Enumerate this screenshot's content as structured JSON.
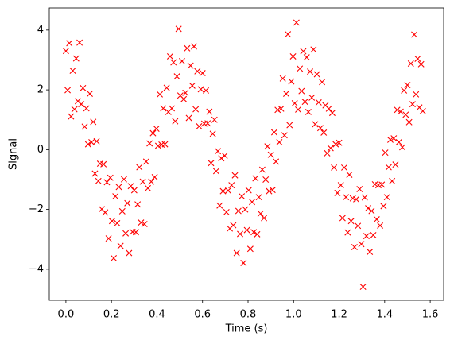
{
  "chart_data": {
    "type": "scatter",
    "xlabel": "Time (s)",
    "ylabel": "Signal",
    "color": "red",
    "marker": "x",
    "xlim": [
      -0.073,
      1.659
    ],
    "ylim": [
      -5.04,
      4.74
    ],
    "xticks": [
      {
        "value": 0,
        "label": "0.0"
      },
      0.2,
      0.4,
      0.6,
      0.8,
      {
        "value": 1,
        "label": "1.0"
      },
      1.2,
      1.4,
      1.6
    ],
    "yticks": [
      {
        "value": -4,
        "label": "−4"
      },
      {
        "value": -2,
        "label": "−2"
      },
      0,
      2,
      4
    ],
    "x": [
      0,
      0.0075,
      0.015,
      0.0225,
      0.03,
      0.0375,
      0.045,
      0.0525,
      0.06,
      0.0675,
      0.075,
      0.0825,
      0.09,
      0.0975,
      0.105,
      0.1125,
      0.12,
      0.1275,
      0.135,
      0.1425,
      0.15,
      0.1575,
      0.165,
      0.1725,
      0.18,
      0.1875,
      0.195,
      0.2025,
      0.21,
      0.2175,
      0.225,
      0.2325,
      0.24,
      0.2475,
      0.255,
      0.2625,
      0.27,
      0.2775,
      0.285,
      0.2925,
      0.3,
      0.3075,
      0.315,
      0.3225,
      0.33,
      0.3375,
      0.345,
      0.3525,
      0.36,
      0.3675,
      0.375,
      0.3825,
      0.39,
      0.3975,
      0.405,
      0.4125,
      0.42,
      0.4275,
      0.435,
      0.4425,
      0.45,
      0.4575,
      0.465,
      0.4725,
      0.48,
      0.4875,
      0.495,
      0.5025,
      0.51,
      0.5175,
      0.525,
      0.5325,
      0.54,
      0.5475,
      0.555,
      0.5625,
      0.57,
      0.5775,
      0.585,
      0.5925,
      0.6,
      0.6075,
      0.615,
      0.6225,
      0.63,
      0.6375,
      0.645,
      0.6525,
      0.66,
      0.6675,
      0.675,
      0.6825,
      0.69,
      0.6975,
      0.705,
      0.7125,
      0.72,
      0.7275,
      0.735,
      0.7425,
      0.75,
      0.7575,
      0.765,
      0.7725,
      0.78,
      0.7875,
      0.795,
      0.8025,
      0.81,
      0.8175,
      0.825,
      0.8325,
      0.84,
      0.8475,
      0.855,
      0.8625,
      0.87,
      0.8775,
      0.885,
      0.8925,
      0.9,
      0.9075,
      0.915,
      0.9225,
      0.93,
      0.9375,
      0.945,
      0.9525,
      0.96,
      0.9675,
      0.975,
      0.9825,
      0.99,
      0.9975,
      1.005,
      1.0125,
      1.02,
      1.0275,
      1.035,
      1.0425,
      1.05,
      1.0575,
      1.065,
      1.0725,
      1.08,
      1.0875,
      1.095,
      1.1025,
      1.11,
      1.1175,
      1.125,
      1.1325,
      1.14,
      1.1475,
      1.155,
      1.1625,
      1.17,
      1.1775,
      1.185,
      1.1925,
      1.2,
      1.2075,
      1.215,
      1.2225,
      1.23,
      1.2375,
      1.245,
      1.2525,
      1.26,
      1.2675,
      1.275,
      1.2825,
      1.29,
      1.2975,
      1.305,
      1.3125,
      1.32,
      1.3275,
      1.335,
      1.3425,
      1.35,
      1.3575,
      1.365,
      1.3725,
      1.38,
      1.3875,
      1.395,
      1.4025,
      1.41,
      1.4175,
      1.425,
      1.4325,
      1.44,
      1.4475,
      1.455,
      1.4625,
      1.47,
      1.4775,
      1.485,
      1.4925,
      1.5,
      1.5075,
      1.515,
      1.5225,
      1.53,
      1.5375,
      1.545,
      1.5525,
      1.56,
      1.5675
    ],
    "values": [
      3.3,
      1.99,
      3.56,
      1.11,
      2.64,
      1.35,
      3.05,
      1.62,
      3.58,
      1.52,
      2.06,
      0.77,
      1.38,
      0.18,
      1.87,
      0.25,
      0.93,
      -0.8,
      0.28,
      -1.05,
      -0.47,
      -1.99,
      -0.49,
      -2.1,
      -1.09,
      -2.97,
      -0.94,
      -2.39,
      -3.63,
      -1.56,
      -2.46,
      -1.25,
      -3.22,
      -2.06,
      -0.99,
      -2.8,
      -1.79,
      -3.46,
      -1.22,
      -2.75,
      -1.36,
      -2.76,
      -1.83,
      -0.59,
      -2.44,
      -1.07,
      -2.49,
      -0.4,
      -1.29,
      0.21,
      -1.07,
      0.55,
      -0.92,
      0.7,
      0.13,
      1.85,
      0.17,
      1.38,
      0.18,
      2.07,
      1.26,
      3.12,
      1.38,
      2.92,
      0.95,
      2.45,
      4.04,
      1.81,
      2.96,
      1.69,
      1.9,
      3.39,
      1.06,
      2.81,
      2.14,
      3.45,
      1.35,
      2.62,
      0.78,
      2.02,
      2.56,
      0.87,
      1.98,
      0.88,
      1.27,
      -0.45,
      0.53,
      1.0,
      -0.72,
      -0.05,
      -1.87,
      -0.29,
      -1.39,
      -0.2,
      -2.09,
      -1.37,
      -2.64,
      -1.19,
      -2.53,
      -0.86,
      -3.46,
      -2.05,
      -2.82,
      -1.56,
      -3.79,
      -2.0,
      -2.69,
      -1.36,
      -3.32,
      -1.75,
      -2.76,
      -0.96,
      -2.83,
      -1.59,
      -2.14,
      -0.67,
      -2.29,
      -1.0,
      0.11,
      -1.39,
      -0.17,
      -1.35,
      0.58,
      -0.4,
      1.33,
      0.25,
      1.37,
      2.38,
      0.48,
      1.87,
      3.86,
      0.82,
      2.28,
      3.12,
      1.55,
      4.25,
      1.34,
      2.71,
      1.96,
      3.29,
      1.6,
      3.09,
      1.26,
      2.61,
      1.74,
      3.35,
      0.85,
      2.52,
      1.58,
      0.72,
      2.26,
      0.57,
      1.48,
      -0.12,
      1.37,
      0.05,
      1.23,
      -0.6,
      0.18,
      -1.45,
      0.23,
      -1.19,
      -2.29,
      -0.6,
      -1.59,
      -2.77,
      -0.84,
      -2.39,
      -1.63,
      -3.26,
      -1.66,
      -2.55,
      -1.32,
      -3.16,
      -4.59,
      -1.6,
      -2.89,
      -1.96,
      -3.42,
      -2.05,
      -2.86,
      -1.16,
      -2.33,
      -1.19,
      -2.54,
      -1.17,
      -1.89,
      -0.1,
      -1.59,
      -0.59,
      0.33,
      -1.05,
      0.38,
      -0.5,
      1.33,
      0.25,
      1.27,
      0.08,
      1.98,
      1.17,
      2.16,
      0.92,
      2.88,
      1.52,
      3.85,
      1.85,
      3.04,
      1.41,
      2.86,
      1.29
    ]
  }
}
